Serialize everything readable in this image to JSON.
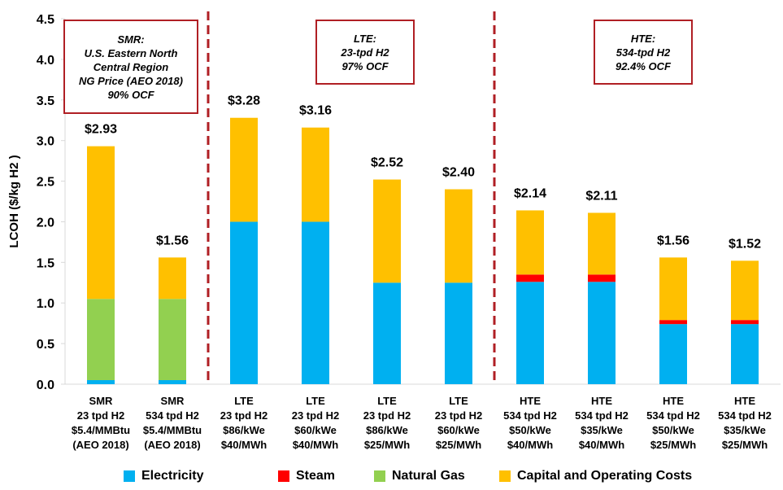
{
  "chart_data": {
    "type": "bar",
    "stacked": true,
    "ylabel": "LCOH ($/kg H2 )",
    "ylim": [
      0,
      4.5
    ],
    "yticks": [
      "0.0",
      "0.5",
      "1.0",
      "1.5",
      "2.0",
      "2.5",
      "3.0",
      "3.5",
      "4.0",
      "4.5"
    ],
    "grid": false,
    "categories": [
      [
        "SMR",
        "23 tpd H2",
        "$5.4/MMBtu",
        "(AEO 2018)"
      ],
      [
        "SMR",
        "534 tpd H2",
        "$5.4/MMBtu",
        "(AEO 2018)"
      ],
      [
        "LTE",
        "23 tpd H2",
        "$86/kWe",
        "$40/MWh"
      ],
      [
        "LTE",
        "23 tpd H2",
        "$60/kWe",
        "$40/MWh"
      ],
      [
        "LTE",
        "23 tpd H2",
        "$86/kWe",
        "$25/MWh"
      ],
      [
        "LTE",
        "23 tpd H2",
        "$60/kWe",
        "$25/MWh"
      ],
      [
        "HTE",
        "534 tpd H2",
        "$50/kWe",
        "$40/MWh"
      ],
      [
        "HTE",
        "534 tpd H2",
        "$35/kWe",
        "$40/MWh"
      ],
      [
        "HTE",
        "534 tpd H2",
        "$50/kWe",
        "$25/MWh"
      ],
      [
        "HTE",
        "534 tpd H2",
        "$35/kWe",
        "$25/MWh"
      ]
    ],
    "totals_labels": [
      "$2.93",
      "$1.56",
      "$3.28",
      "$3.16",
      "$2.52",
      "$2.40",
      "$2.14",
      "$2.11",
      "$1.56",
      "$1.52"
    ],
    "series": [
      {
        "name": "Electricity",
        "color": "#00b0f0",
        "values": [
          0.05,
          0.05,
          2.0,
          2.0,
          1.25,
          1.25,
          1.26,
          1.26,
          0.74,
          0.74
        ]
      },
      {
        "name": "Steam",
        "color": "#ff0000",
        "values": [
          0,
          0,
          0,
          0,
          0,
          0,
          0.09,
          0.09,
          0.05,
          0.05
        ]
      },
      {
        "name": "Natural Gas",
        "color": "#92d050",
        "values": [
          1.0,
          1.0,
          0,
          0,
          0,
          0,
          0,
          0,
          0,
          0
        ]
      },
      {
        "name": "Capital and Operating Costs",
        "color": "#ffc000",
        "values": [
          1.88,
          0.51,
          1.28,
          1.16,
          1.27,
          1.15,
          0.79,
          0.76,
          0.77,
          0.73
        ]
      }
    ],
    "dividers_after_category": [
      1,
      5
    ],
    "divider_color": "#b01f24",
    "legend_position": "bottom",
    "annotations": [
      {
        "lines": [
          "SMR:",
          "U.S. Eastern North",
          "Central Region",
          "NG Price (AEO 2018)",
          "90% OCF"
        ]
      },
      {
        "lines": [
          "LTE:",
          "23-tpd H2",
          "97% OCF"
        ]
      },
      {
        "lines": [
          "HTE:",
          "534-tpd H2",
          "92.4% OCF"
        ]
      }
    ]
  }
}
